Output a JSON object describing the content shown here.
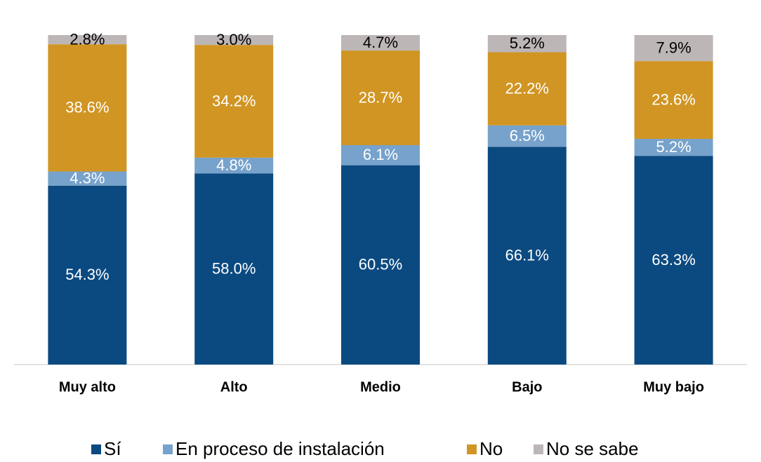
{
  "chart_data": {
    "type": "stacked_bar",
    "categories": [
      "Muy alto",
      "Alto",
      "Medio",
      "Bajo",
      "Muy bajo"
    ],
    "ylim": [
      0,
      100
    ],
    "series": [
      {
        "name": "Sí",
        "color": "#0b4a80",
        "values": [
          54.3,
          58.0,
          60.5,
          66.1,
          63.3
        ],
        "value_labels": [
          "54.3%",
          "58.0%",
          "60.5%",
          "66.1%",
          "63.3%"
        ]
      },
      {
        "name": "En proceso de instalación",
        "color": "#76a2cb",
        "values": [
          4.3,
          4.8,
          6.1,
          6.5,
          5.2
        ],
        "value_labels": [
          "4.3%",
          "4.8%",
          "6.1%",
          "6.5%",
          "5.2%"
        ]
      },
      {
        "name": "No",
        "color": "#d19523",
        "values": [
          38.6,
          34.2,
          28.7,
          22.2,
          23.6
        ],
        "value_labels": [
          "38.6%",
          "34.2%",
          "28.7%",
          "22.2%",
          "23.6%"
        ]
      },
      {
        "name": "No se sabe",
        "color": "#bdb6b7",
        "values": [
          2.8,
          3.0,
          4.7,
          5.2,
          7.9
        ],
        "value_labels": [
          "2.8%",
          "3.0%",
          "4.7%",
          "5.2%",
          "7.9%"
        ]
      }
    ]
  }
}
